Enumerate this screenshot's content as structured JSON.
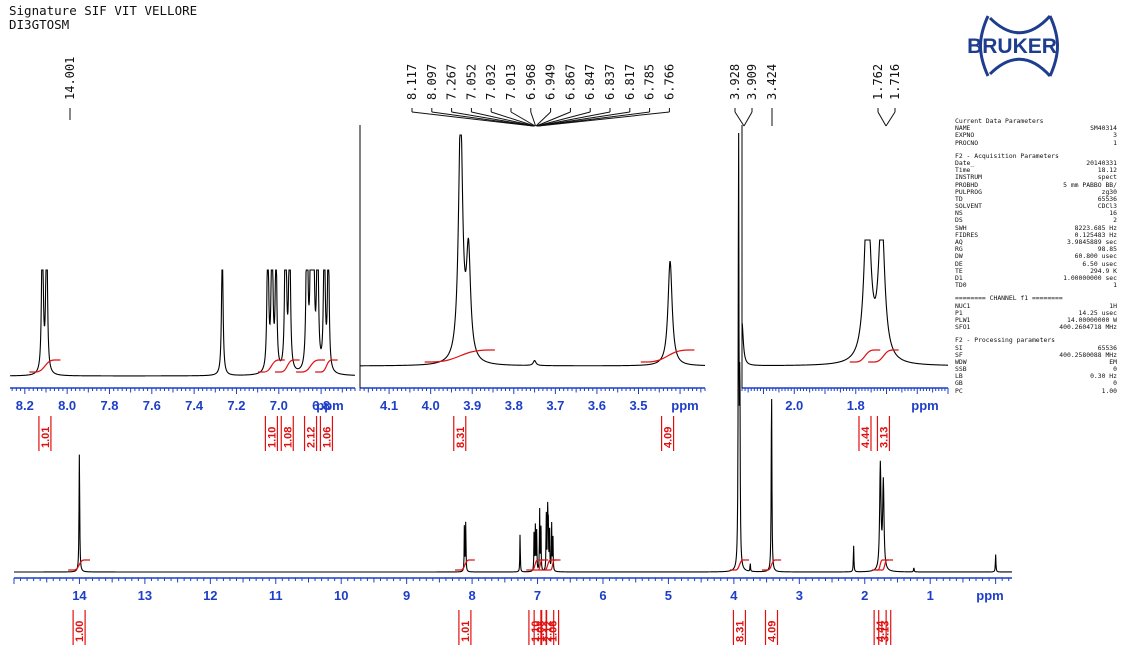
{
  "header": {
    "line1": "Signature SIF VIT VELLORE",
    "line2": "DI3GTOSM"
  },
  "logo_text": "BRUKER",
  "colors": {
    "axis_labels": "#1d3fc8",
    "integrals": "#e01010",
    "trace": "#000000",
    "logo": "#1e3d8f"
  },
  "parameters": {
    "sections": [
      {
        "title": "Current Data Parameters",
        "rows": [
          [
            "NAME",
            "SM40314"
          ],
          [
            "EXPNO",
            "3"
          ],
          [
            "PROCNO",
            "1"
          ]
        ]
      },
      {
        "title": "F2 - Acquisition Parameters",
        "rows": [
          [
            "Date_",
            "20140331"
          ],
          [
            "Time",
            "18.12"
          ],
          [
            "INSTRUM",
            "spect"
          ],
          [
            "PROBHD",
            "5 mm PABBO BB/"
          ],
          [
            "PULPROG",
            "zg30"
          ],
          [
            "TD",
            "65536"
          ],
          [
            "SOLVENT",
            "CDCl3"
          ],
          [
            "NS",
            "16"
          ],
          [
            "DS",
            "2"
          ],
          [
            "SWH",
            "8223.685 Hz"
          ],
          [
            "FIDRES",
            "0.125483 Hz"
          ],
          [
            "AQ",
            "3.9845889 sec"
          ],
          [
            "RG",
            "98.85"
          ],
          [
            "DW",
            "60.800 usec"
          ],
          [
            "DE",
            "6.50 usec"
          ],
          [
            "TE",
            "294.9 K"
          ],
          [
            "D1",
            "1.00000000 sec"
          ],
          [
            "TD0",
            "1"
          ]
        ]
      },
      {
        "title": "======== CHANNEL f1 ========",
        "rows": [
          [
            "NUC1",
            "1H"
          ],
          [
            "P1",
            "14.25 usec"
          ],
          [
            "PLW1",
            "14.00000000 W"
          ],
          [
            "SFO1",
            "400.2604718 MHz"
          ]
        ]
      },
      {
        "title": "F2 - Processing parameters",
        "rows": [
          [
            "SI",
            "65536"
          ],
          [
            "SF",
            "400.2580088 MHz"
          ],
          [
            "WDW",
            "EM"
          ],
          [
            "SSB",
            "0"
          ],
          [
            "LB",
            "0.30 Hz"
          ],
          [
            "GB",
            "0"
          ],
          [
            "PC",
            "1.00"
          ]
        ]
      }
    ]
  },
  "chart_data": [
    {
      "type": "line",
      "name": "full_spectrum",
      "xlabel": "ppm",
      "xlim": [
        15.0,
        -0.25
      ],
      "ticks": [
        14,
        13,
        12,
        11,
        10,
        9,
        8,
        7,
        6,
        5,
        4,
        3,
        2,
        1
      ],
      "peaks": [
        {
          "ppm": 14.001,
          "h": 0.27,
          "w": 0.006
        },
        {
          "ppm": 8.117,
          "h": 0.12,
          "w": 0.004
        },
        {
          "ppm": 8.097,
          "h": 0.12,
          "w": 0.004
        },
        {
          "ppm": 7.267,
          "h": 0.09,
          "w": 0.004
        },
        {
          "ppm": 7.052,
          "h": 0.11,
          "w": 0.004
        },
        {
          "ppm": 7.032,
          "h": 0.12,
          "w": 0.004
        },
        {
          "ppm": 7.013,
          "h": 0.09,
          "w": 0.004
        },
        {
          "ppm": 6.968,
          "h": 0.14,
          "w": 0.004
        },
        {
          "ppm": 6.949,
          "h": 0.12,
          "w": 0.004
        },
        {
          "ppm": 6.867,
          "h": 0.14,
          "w": 0.004
        },
        {
          "ppm": 6.847,
          "h": 0.15,
          "w": 0.004
        },
        {
          "ppm": 6.837,
          "h": 0.13,
          "w": 0.004
        },
        {
          "ppm": 6.817,
          "h": 0.12,
          "w": 0.004
        },
        {
          "ppm": 6.785,
          "h": 0.11,
          "w": 0.004
        },
        {
          "ppm": 6.766,
          "h": 0.1,
          "w": 0.004
        },
        {
          "ppm": 3.928,
          "h": 1.0,
          "w": 0.006
        },
        {
          "ppm": 3.909,
          "h": 0.42,
          "w": 0.006
        },
        {
          "ppm": 3.75,
          "h": 0.02,
          "w": 0.004
        },
        {
          "ppm": 3.424,
          "h": 0.42,
          "w": 0.006
        },
        {
          "ppm": 2.17,
          "h": 0.06,
          "w": 0.005
        },
        {
          "ppm": 1.762,
          "h": 0.24,
          "w": 0.012
        },
        {
          "ppm": 1.716,
          "h": 0.2,
          "w": 0.012
        },
        {
          "ppm": 1.25,
          "h": 0.01,
          "w": 0.005
        },
        {
          "ppm": 0.0,
          "h": 0.04,
          "w": 0.005
        }
      ],
      "peak_label_groups": [
        {
          "labels": [
            "14.001"
          ],
          "ppms": [
            14.001
          ]
        },
        {
          "labels": [
            "8.117",
            "8.097",
            "7.267",
            "7.052",
            "7.032",
            "7.013",
            "6.968",
            "6.949",
            "6.867",
            "6.847",
            "6.837",
            "6.817",
            "6.785",
            "6.766"
          ],
          "ppms": [
            8.117,
            8.097,
            7.267,
            7.052,
            7.032,
            7.013,
            6.968,
            6.949,
            6.867,
            6.847,
            6.837,
            6.817,
            6.785,
            6.766
          ]
        },
        {
          "labels": [
            "3.928",
            "3.909"
          ],
          "ppms": [
            3.928,
            3.909
          ]
        },
        {
          "labels": [
            "3.424"
          ],
          "ppms": [
            3.424
          ]
        },
        {
          "labels": [
            "1.762",
            "1.716"
          ],
          "ppms": [
            1.762,
            1.716
          ]
        }
      ],
      "integrals": [
        {
          "value": "1.00",
          "range": [
            14.08,
            13.93
          ]
        },
        {
          "value": "1.01",
          "range": [
            8.17,
            8.05
          ]
        },
        {
          "value": "1.10",
          "range": [
            7.08,
            7.0
          ]
        },
        {
          "value": "1.08",
          "range": [
            6.99,
            6.93
          ]
        },
        {
          "value": "2.12",
          "range": [
            6.89,
            6.8
          ]
        },
        {
          "value": "1.06",
          "range": [
            6.8,
            6.74
          ]
        },
        {
          "value": "8.31",
          "range": [
            3.97,
            3.86
          ]
        },
        {
          "value": "4.09",
          "range": [
            3.48,
            3.37
          ]
        },
        {
          "value": "4.44",
          "range": [
            1.8,
            1.73
          ]
        },
        {
          "value": "3.13",
          "range": [
            1.73,
            1.66
          ]
        }
      ]
    },
    {
      "type": "line",
      "name": "inset_aromatic",
      "xlabel": "ppm",
      "xlim": [
        8.27,
        6.64
      ],
      "ticks": [
        8.2,
        8.0,
        7.8,
        7.6,
        7.4,
        7.2,
        7.0,
        6.8
      ],
      "integrals": [
        {
          "value": "1.01",
          "range": [
            8.15,
            8.06
          ]
        },
        {
          "value": "1.10",
          "range": [
            7.07,
            7.0
          ]
        },
        {
          "value": "1.08",
          "range": [
            6.99,
            6.93
          ]
        },
        {
          "value": "2.12",
          "range": [
            6.89,
            6.81
          ]
        },
        {
          "value": "1.06",
          "range": [
            6.8,
            6.75
          ]
        }
      ]
    },
    {
      "type": "line",
      "name": "inset_methoxy",
      "xlabel": "ppm",
      "xlim": [
        4.17,
        3.34
      ],
      "ticks": [
        4.1,
        4.0,
        3.9,
        3.8,
        3.7,
        3.6,
        3.5
      ],
      "integrals": [
        {
          "value": "8.31",
          "range": [
            4.0,
            3.86
          ]
        },
        {
          "value": "4.09",
          "range": [
            3.48,
            3.38
          ]
        }
      ]
    },
    {
      "type": "line",
      "name": "inset_aliphatic",
      "xlabel": "ppm",
      "xlim": [
        2.17,
        1.5
      ],
      "ticks": [
        2.0,
        1.8
      ],
      "integrals": [
        {
          "value": "4.44",
          "range": [
            1.8,
            1.74
          ]
        },
        {
          "value": "3.13",
          "range": [
            1.74,
            1.68
          ]
        }
      ]
    }
  ]
}
